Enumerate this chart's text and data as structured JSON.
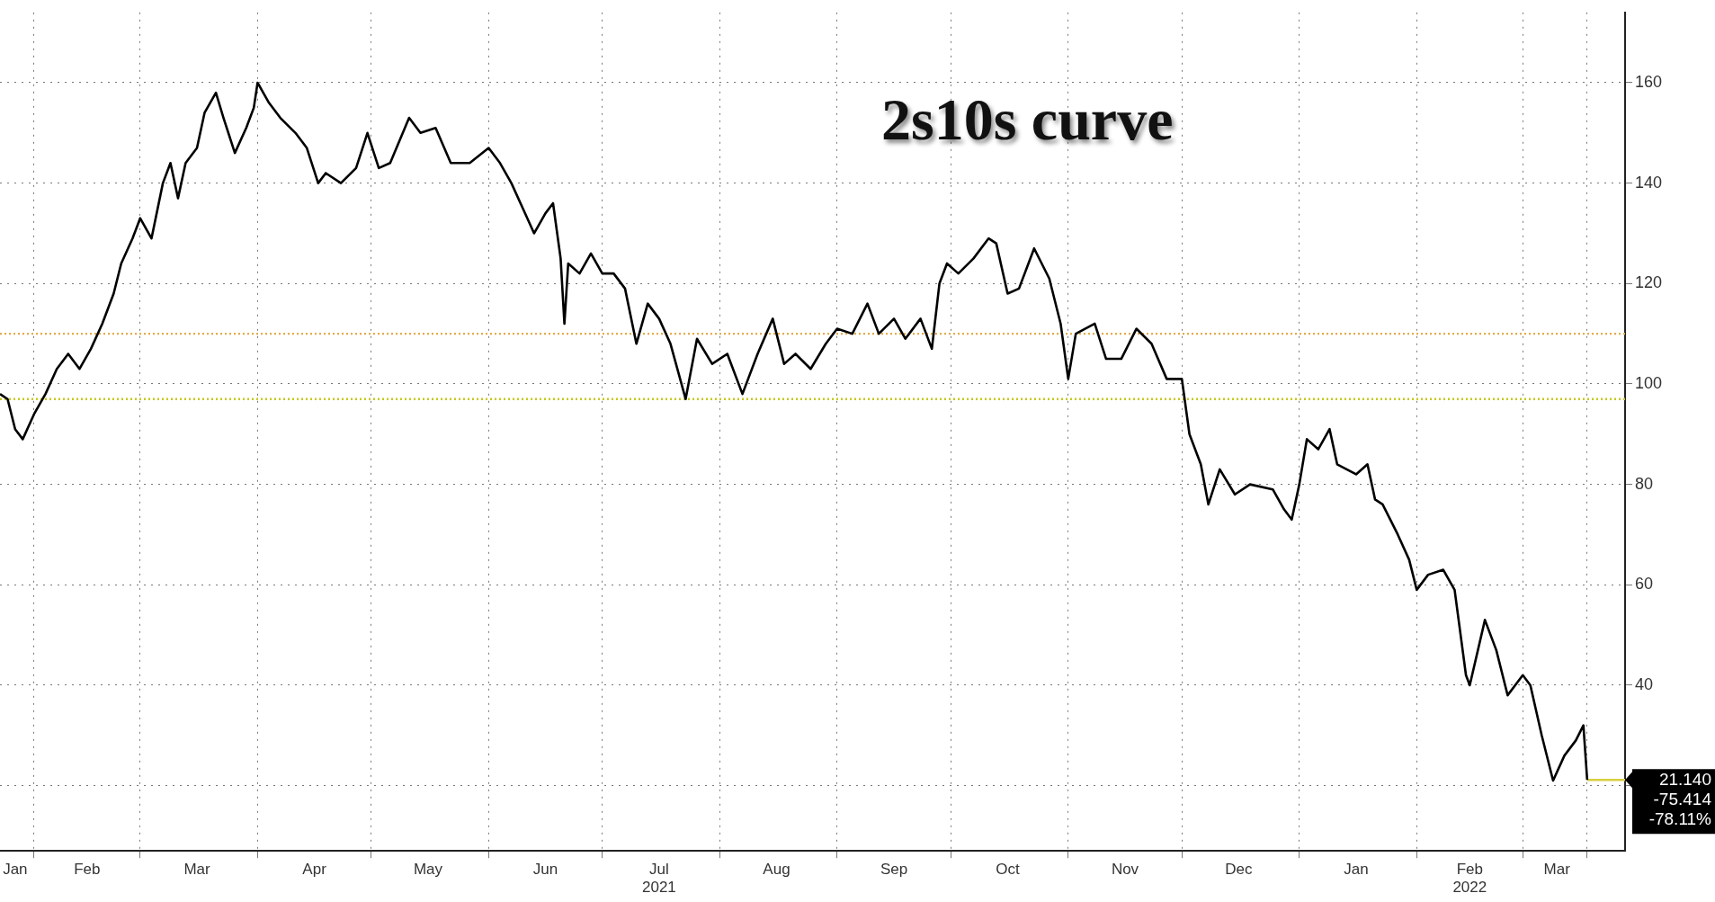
{
  "chart_data": {
    "type": "line",
    "title": "2s10s curve",
    "x": [
      "2021-01-23",
      "2021-01-25",
      "2021-01-27",
      "2021-01-29",
      "2021-02-01",
      "2021-02-04",
      "2021-02-07",
      "2021-02-10",
      "2021-02-13",
      "2021-02-16",
      "2021-02-19",
      "2021-02-22",
      "2021-02-24",
      "2021-02-27",
      "2021-03-01",
      "2021-03-04",
      "2021-03-07",
      "2021-03-09",
      "2021-03-11",
      "2021-03-13",
      "2021-03-16",
      "2021-03-18",
      "2021-03-21",
      "2021-03-23",
      "2021-03-26",
      "2021-03-29",
      "2021-03-31",
      "2021-04-01",
      "2021-04-04",
      "2021-04-07",
      "2021-04-11",
      "2021-04-14",
      "2021-04-17",
      "2021-04-19",
      "2021-04-23",
      "2021-04-27",
      "2021-04-30",
      "2021-05-03",
      "2021-05-06",
      "2021-05-11",
      "2021-05-14",
      "2021-05-18",
      "2021-05-22",
      "2021-05-27",
      "2021-06-01",
      "2021-06-04",
      "2021-06-07",
      "2021-06-10",
      "2021-06-13",
      "2021-06-16",
      "2021-06-18",
      "2021-06-20",
      "2021-06-21",
      "2021-06-22",
      "2021-06-25",
      "2021-06-28",
      "2021-07-01",
      "2021-07-04",
      "2021-07-07",
      "2021-07-10",
      "2021-07-13",
      "2021-07-16",
      "2021-07-19",
      "2021-07-23",
      "2021-07-26",
      "2021-07-30",
      "2021-08-03",
      "2021-08-07",
      "2021-08-11",
      "2021-08-15",
      "2021-08-18",
      "2021-08-21",
      "2021-08-25",
      "2021-08-29",
      "2021-09-01",
      "2021-09-05",
      "2021-09-09",
      "2021-09-12",
      "2021-09-16",
      "2021-09-19",
      "2021-09-23",
      "2021-09-26",
      "2021-09-28",
      "2021-09-30",
      "2021-10-03",
      "2021-10-07",
      "2021-10-11",
      "2021-10-13",
      "2021-10-16",
      "2021-10-19",
      "2021-10-23",
      "2021-10-27",
      "2021-10-30",
      "2021-11-01",
      "2021-11-03",
      "2021-11-08",
      "2021-11-11",
      "2021-11-15",
      "2021-11-19",
      "2021-11-23",
      "2021-11-27",
      "2021-12-01",
      "2021-12-03",
      "2021-12-06",
      "2021-12-08",
      "2021-12-11",
      "2021-12-15",
      "2021-12-19",
      "2021-12-25",
      "2021-12-28",
      "2021-12-30",
      "2022-01-01",
      "2022-01-03",
      "2022-01-06",
      "2022-01-09",
      "2022-01-11",
      "2022-01-16",
      "2022-01-19",
      "2022-01-21",
      "2022-01-23",
      "2022-01-27",
      "2022-01-30",
      "2022-02-01",
      "2022-02-04",
      "2022-02-08",
      "2022-02-11",
      "2022-02-14",
      "2022-02-15",
      "2022-02-19",
      "2022-02-22",
      "2022-02-25",
      "2022-03-01",
      "2022-03-03",
      "2022-03-06",
      "2022-03-09",
      "2022-03-12",
      "2022-03-15",
      "2022-03-17",
      "2022-03-18"
    ],
    "series": [
      {
        "color": "#000000",
        "values": [
          98,
          97,
          91,
          89,
          94,
          98,
          103,
          106,
          103,
          107,
          112,
          118,
          124,
          129,
          133,
          129,
          140,
          144,
          137,
          144,
          147,
          154,
          158,
          153,
          146,
          151,
          155,
          160,
          156,
          153,
          150,
          147,
          140,
          142,
          140,
          143,
          150,
          143,
          144,
          153,
          150,
          151,
          144,
          144,
          147,
          144,
          140,
          135,
          130,
          134,
          136,
          125,
          112,
          124,
          122,
          126,
          122,
          122,
          119,
          108,
          116,
          113,
          108,
          97,
          109,
          104,
          106,
          98,
          106,
          113,
          104,
          106,
          103,
          108,
          111,
          110,
          116,
          110,
          113,
          109,
          113,
          107,
          120,
          124,
          122,
          125,
          129,
          128,
          118,
          119,
          127,
          121,
          112,
          101,
          110,
          112,
          105,
          105,
          111,
          108,
          101,
          101,
          90,
          84,
          76,
          83,
          78,
          80,
          79,
          75,
          73,
          80,
          89,
          87,
          91,
          84,
          82,
          84,
          77,
          76,
          70,
          65,
          59,
          62,
          63,
          59,
          42,
          40,
          53,
          47,
          38,
          42,
          40,
          30,
          21,
          26,
          29,
          32,
          21.14
        ]
      },
      {
        "type": "line",
        "color": "#d8d040",
        "x": [
          "2022-03-18",
          "2022-03-28"
        ],
        "values": [
          21.14,
          21.14
        ]
      }
    ],
    "xlim": [
      "2021-01-23",
      "2022-03-28"
    ],
    "xticks": [
      {
        "value": "2021-01-27",
        "label": "Jan"
      },
      {
        "value": "2021-02-01",
        "label": null
      },
      {
        "value": "2021-02-15",
        "label": "Feb"
      },
      {
        "value": "2021-03-01",
        "label": null
      },
      {
        "value": "2021-03-16",
        "label": "Mar"
      },
      {
        "value": "2021-04-01",
        "label": null
      },
      {
        "value": "2021-04-16",
        "label": "Apr"
      },
      {
        "value": "2021-05-01",
        "label": null
      },
      {
        "value": "2021-05-16",
        "label": "May"
      },
      {
        "value": "2021-06-01",
        "label": null
      },
      {
        "value": "2021-06-16",
        "label": "Jun"
      },
      {
        "value": "2021-07-01",
        "label": null
      },
      {
        "value": "2021-07-16",
        "label": "Jul\n2021"
      },
      {
        "value": "2021-08-01",
        "label": null
      },
      {
        "value": "2021-08-16",
        "label": "Aug"
      },
      {
        "value": "2021-09-01",
        "label": null
      },
      {
        "value": "2021-09-16",
        "label": "Sep"
      },
      {
        "value": "2021-10-01",
        "label": null
      },
      {
        "value": "2021-10-16",
        "label": "Oct"
      },
      {
        "value": "2021-11-01",
        "label": null
      },
      {
        "value": "2021-11-16",
        "label": "Nov"
      },
      {
        "value": "2021-12-01",
        "label": null
      },
      {
        "value": "2021-12-16",
        "label": "Dec"
      },
      {
        "value": "2022-01-01",
        "label": null
      },
      {
        "value": "2022-01-16",
        "label": "Jan"
      },
      {
        "value": "2022-02-01",
        "label": null
      },
      {
        "value": "2022-02-15",
        "label": "Feb\n2022"
      },
      {
        "value": "2022-03-01",
        "label": null
      },
      {
        "value": "2022-03-10",
        "label": "Mar"
      },
      {
        "value": "2022-03-18",
        "label": null
      }
    ],
    "ylim": [
      7,
      174
    ],
    "yticks": [
      {
        "value": 20,
        "label": null
      },
      40,
      60,
      80,
      100,
      120,
      140,
      160
    ],
    "ref_lines": [
      {
        "axis": "y",
        "value": 110,
        "color": "#e3ac4a",
        "line_style": "dotted"
      },
      {
        "axis": "y",
        "value": 97,
        "color": "#c8c81e",
        "line_style": "dotted"
      }
    ],
    "annotations": [
      {
        "text": "21.140\n-75.414\n-78.11%",
        "x": "2022-03-28",
        "y": 21.14
      }
    ],
    "grid": true
  }
}
